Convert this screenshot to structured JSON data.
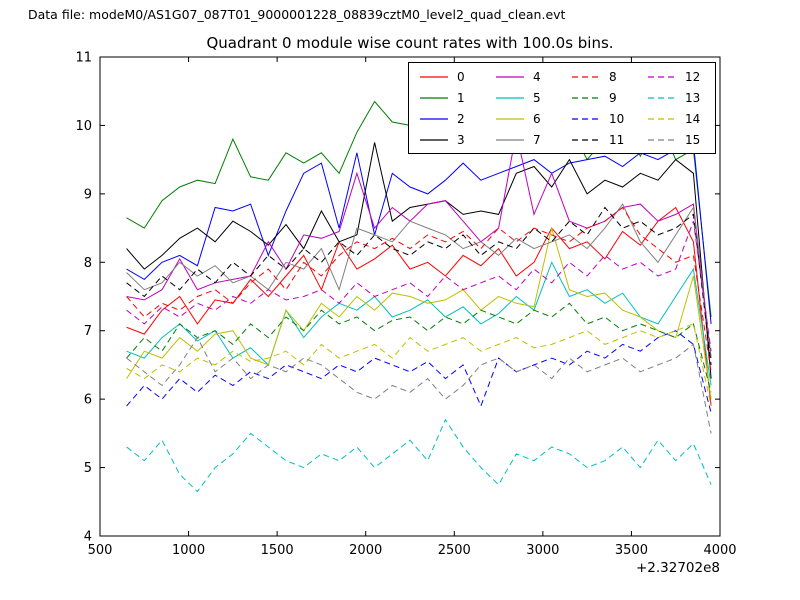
{
  "header": {
    "data_file_label": "Data file: modeM0/AS1G07_087T01_9000001228_08839cztM0_level2_quad_clean.evt"
  },
  "chart_data": {
    "type": "line",
    "title": "Quadrant 0 module wise count rates with 100.0s bins.",
    "x_offset_label": "+2.32702e8",
    "xlabel": "",
    "ylabel": "",
    "xlim": [
      500,
      4000
    ],
    "ylim": [
      4,
      11
    ],
    "xticks": [
      500,
      1000,
      1500,
      2000,
      2500,
      3000,
      3500,
      4000
    ],
    "yticks": [
      4,
      5,
      6,
      7,
      8,
      9,
      10,
      11
    ],
    "grid": false,
    "legend_position": "upper center-right, 4 columns",
    "x": [
      650,
      750,
      850,
      950,
      1050,
      1150,
      1250,
      1350,
      1450,
      1550,
      1650,
      1750,
      1850,
      1950,
      2050,
      2150,
      2250,
      2350,
      2450,
      2550,
      2650,
      2750,
      2850,
      2950,
      3050,
      3150,
      3250,
      3350,
      3450,
      3550,
      3650,
      3750,
      3850,
      3950
    ],
    "series": [
      {
        "name": "0",
        "color": "#ff0000",
        "style": "solid",
        "values": [
          7.05,
          6.95,
          7.3,
          7.5,
          7.1,
          7.45,
          7.4,
          7.75,
          7.5,
          7.8,
          8.1,
          7.6,
          8.3,
          7.9,
          8.05,
          8.25,
          7.9,
          8.0,
          7.8,
          8.1,
          7.95,
          8.2,
          7.8,
          8.0,
          8.5,
          8.2,
          8.3,
          8.05,
          8.45,
          8.25,
          8.6,
          8.8,
          8.3,
          5.9
        ]
      },
      {
        "name": "1",
        "color": "#007f00",
        "style": "solid",
        "values": [
          8.65,
          8.5,
          8.9,
          9.1,
          9.2,
          9.15,
          9.8,
          9.25,
          9.2,
          9.6,
          9.45,
          9.6,
          9.3,
          9.9,
          10.35,
          10.05,
          10.0,
          9.95,
          9.9,
          9.7,
          9.8,
          9.65,
          9.9,
          10.1,
          10.45,
          10.0,
          9.5,
          9.8,
          10.2,
          9.55,
          10.1,
          9.5,
          9.65,
          7.2
        ]
      },
      {
        "name": "2",
        "color": "#0000ff",
        "style": "solid",
        "values": [
          7.9,
          7.75,
          8.0,
          8.1,
          7.95,
          8.8,
          8.75,
          8.85,
          8.1,
          8.75,
          9.3,
          9.45,
          8.5,
          9.6,
          8.4,
          9.3,
          9.1,
          9.0,
          9.2,
          9.45,
          9.2,
          9.3,
          9.4,
          9.5,
          9.3,
          9.45,
          9.5,
          9.55,
          9.4,
          9.6,
          9.5,
          9.65,
          9.75,
          7.1
        ]
      },
      {
        "name": "3",
        "color": "#000000",
        "style": "solid",
        "values": [
          8.2,
          7.9,
          8.1,
          8.35,
          8.5,
          8.3,
          8.6,
          8.45,
          8.25,
          8.55,
          8.2,
          8.75,
          8.3,
          8.4,
          9.75,
          8.6,
          8.8,
          8.85,
          8.9,
          8.7,
          8.75,
          8.7,
          9.3,
          9.4,
          9.1,
          9.5,
          9.0,
          9.2,
          9.1,
          9.3,
          9.2,
          9.5,
          9.3,
          6.3
        ]
      },
      {
        "name": "4",
        "color": "#bf00bf",
        "style": "solid",
        "values": [
          7.5,
          7.45,
          7.6,
          8.05,
          7.6,
          7.7,
          7.75,
          7.8,
          8.3,
          7.9,
          8.4,
          8.35,
          8.45,
          9.3,
          8.5,
          8.8,
          8.6,
          8.85,
          8.9,
          8.6,
          8.3,
          8.5,
          9.9,
          8.7,
          9.3,
          8.6,
          8.5,
          8.6,
          8.8,
          8.85,
          8.6,
          8.7,
          8.85,
          6.6
        ]
      },
      {
        "name": "5",
        "color": "#00bfbf",
        "style": "solid",
        "values": [
          6.7,
          6.6,
          6.9,
          7.1,
          6.85,
          7.0,
          6.6,
          6.75,
          6.5,
          7.3,
          6.9,
          7.2,
          7.4,
          7.3,
          7.5,
          7.2,
          7.3,
          7.45,
          7.2,
          7.35,
          7.1,
          7.25,
          7.5,
          7.3,
          8.0,
          7.5,
          7.6,
          7.4,
          7.55,
          7.2,
          7.1,
          7.5,
          7.9,
          6.2
        ]
      },
      {
        "name": "6",
        "color": "#bfbf00",
        "style": "solid",
        "values": [
          6.3,
          6.7,
          6.6,
          6.9,
          6.7,
          6.95,
          7.0,
          6.6,
          6.5,
          7.3,
          7.0,
          7.4,
          7.2,
          7.5,
          7.3,
          7.55,
          7.5,
          7.4,
          7.45,
          7.6,
          7.3,
          7.5,
          7.4,
          7.35,
          8.5,
          7.6,
          7.5,
          7.55,
          7.3,
          7.2,
          7.0,
          6.9,
          7.8,
          6.0
        ]
      },
      {
        "name": "7",
        "color": "#7f7f7f",
        "style": "solid",
        "values": [
          7.85,
          7.6,
          7.7,
          8.0,
          7.8,
          7.95,
          7.7,
          7.8,
          7.6,
          8.0,
          7.9,
          8.2,
          7.6,
          8.5,
          8.4,
          8.3,
          8.6,
          8.5,
          8.4,
          8.2,
          8.3,
          8.1,
          8.35,
          8.2,
          8.3,
          8.4,
          8.2,
          8.5,
          8.85,
          8.3,
          8.0,
          8.4,
          8.8,
          6.6
        ]
      },
      {
        "name": "8",
        "color": "#ff0000",
        "style": "dashed",
        "values": [
          7.5,
          7.2,
          7.4,
          7.3,
          7.5,
          7.6,
          7.4,
          7.7,
          7.9,
          7.6,
          8.0,
          7.8,
          8.1,
          8.3,
          8.2,
          8.35,
          8.2,
          8.4,
          8.3,
          8.45,
          8.2,
          8.5,
          8.3,
          8.5,
          8.4,
          8.3,
          8.5,
          8.6,
          8.8,
          8.4,
          8.2,
          8.0,
          8.1,
          6.4
        ]
      },
      {
        "name": "9",
        "color": "#007f00",
        "style": "dashed",
        "values": [
          6.6,
          6.9,
          6.7,
          7.1,
          6.9,
          7.0,
          6.8,
          7.1,
          6.9,
          7.2,
          7.0,
          7.3,
          7.1,
          7.2,
          7.0,
          7.15,
          7.2,
          7.0,
          7.2,
          7.1,
          7.3,
          7.2,
          7.1,
          7.3,
          7.2,
          7.4,
          7.1,
          7.2,
          7.0,
          7.1,
          7.0,
          6.9,
          7.1,
          6.1
        ]
      },
      {
        "name": "10",
        "color": "#0000ff",
        "style": "dashed",
        "values": [
          5.9,
          6.2,
          6.0,
          6.3,
          6.1,
          6.35,
          6.2,
          6.4,
          6.3,
          6.5,
          6.4,
          6.3,
          6.5,
          6.4,
          6.6,
          6.5,
          6.4,
          6.55,
          6.3,
          6.5,
          5.9,
          6.6,
          6.4,
          6.5,
          6.6,
          6.5,
          6.7,
          6.6,
          6.8,
          6.7,
          6.9,
          7.0,
          6.8,
          5.8
        ]
      },
      {
        "name": "11",
        "color": "#000000",
        "style": "dashed",
        "values": [
          7.7,
          7.5,
          7.8,
          7.6,
          7.9,
          7.7,
          8.0,
          7.8,
          8.1,
          7.9,
          8.2,
          8.0,
          8.3,
          8.1,
          8.4,
          8.2,
          8.1,
          8.3,
          8.2,
          8.4,
          8.1,
          8.3,
          8.2,
          8.5,
          8.3,
          8.6,
          8.4,
          8.8,
          8.5,
          8.6,
          8.4,
          8.5,
          8.7,
          6.5
        ]
      },
      {
        "name": "12",
        "color": "#bf00bf",
        "style": "dashed",
        "values": [
          7.3,
          7.1,
          7.35,
          7.2,
          7.4,
          7.3,
          7.5,
          7.4,
          7.6,
          7.45,
          7.5,
          7.6,
          7.4,
          7.7,
          7.5,
          7.6,
          7.7,
          7.5,
          7.8,
          7.6,
          7.7,
          7.8,
          7.6,
          7.9,
          7.7,
          8.0,
          7.8,
          8.1,
          7.9,
          8.0,
          7.8,
          7.9,
          8.6,
          6.7
        ]
      },
      {
        "name": "13",
        "color": "#00bfbf",
        "style": "dashed",
        "values": [
          5.3,
          5.1,
          5.4,
          4.9,
          4.65,
          5.0,
          5.2,
          5.5,
          5.3,
          5.1,
          5.0,
          5.2,
          5.1,
          5.3,
          5.0,
          5.2,
          5.4,
          5.1,
          5.7,
          5.3,
          5.0,
          4.75,
          5.2,
          5.1,
          5.3,
          5.2,
          5.0,
          5.1,
          5.3,
          5.0,
          5.4,
          5.1,
          5.35,
          4.75
        ]
      },
      {
        "name": "14",
        "color": "#bfbf00",
        "style": "dashed",
        "values": [
          6.45,
          6.3,
          6.5,
          6.4,
          6.6,
          6.5,
          6.7,
          6.55,
          6.6,
          6.7,
          6.5,
          6.8,
          6.6,
          6.7,
          6.8,
          6.6,
          6.9,
          6.7,
          6.8,
          6.9,
          6.7,
          6.8,
          6.9,
          6.75,
          6.8,
          6.9,
          7.0,
          6.8,
          6.9,
          7.0,
          6.9,
          7.0,
          7.1,
          5.9
        ]
      },
      {
        "name": "15",
        "color": "#7f7f7f",
        "style": "dashed",
        "values": [
          6.6,
          6.4,
          6.2,
          6.5,
          6.9,
          6.4,
          6.6,
          6.3,
          6.5,
          6.4,
          6.6,
          6.5,
          6.3,
          6.1,
          6.0,
          6.2,
          6.1,
          6.3,
          6.0,
          6.2,
          6.5,
          6.6,
          6.4,
          6.5,
          6.3,
          6.6,
          6.4,
          6.5,
          6.6,
          6.4,
          6.5,
          6.6,
          6.8,
          5.5
        ]
      }
    ]
  }
}
